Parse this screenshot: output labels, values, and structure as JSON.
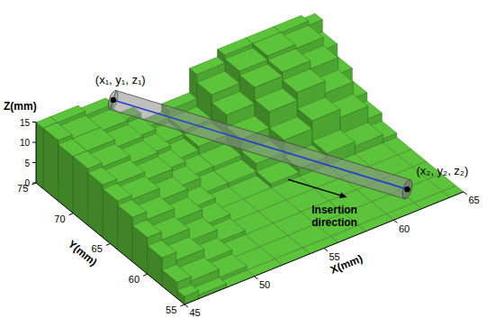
{
  "chart_data": {
    "type": "surface3d",
    "x_label": "X(mm)",
    "y_label": "Y(mm)",
    "z_label": "Z(mm)",
    "xlim": [
      45,
      65
    ],
    "ylim": [
      55,
      75
    ],
    "zlim": [
      0,
      15
    ],
    "xticks": [
      45,
      50,
      55,
      60,
      65
    ],
    "yticks": [
      55,
      60,
      65,
      70,
      75
    ],
    "zticks": [
      0,
      5,
      10,
      15
    ],
    "color": "#5cc43a",
    "surface": {
      "x": [
        45,
        47,
        49,
        51,
        53,
        55,
        57,
        59,
        61,
        63,
        65
      ],
      "y": [
        55,
        57,
        59,
        61,
        63,
        65,
        67,
        69,
        71,
        73,
        75
      ],
      "z": [
        [
          2,
          1,
          0,
          0,
          0,
          0,
          0,
          0,
          0,
          0,
          0
        ],
        [
          4,
          3,
          1,
          0,
          0,
          0,
          0,
          0,
          0,
          0,
          0
        ],
        [
          7,
          5,
          2,
          0,
          0,
          0,
          0,
          0,
          0,
          0,
          0
        ],
        [
          9,
          7,
          4,
          1,
          0,
          0,
          0,
          0,
          0,
          0,
          0
        ],
        [
          11,
          9,
          6,
          2,
          0,
          0,
          0,
          0,
          0,
          0,
          0
        ],
        [
          12,
          11,
          8,
          3,
          0,
          0,
          1,
          2,
          3,
          2,
          1
        ],
        [
          13,
          12,
          10,
          5,
          1,
          1,
          3,
          6,
          8,
          6,
          3
        ],
        [
          14,
          13,
          11,
          6,
          2,
          2,
          6,
          10,
          12,
          9,
          5
        ],
        [
          14,
          14,
          12,
          7,
          3,
          4,
          9,
          13,
          14,
          12,
          8
        ],
        [
          15,
          14,
          13,
          8,
          4,
          5,
          11,
          14,
          15,
          14,
          11
        ],
        [
          15,
          15,
          14,
          9,
          5,
          7,
          13,
          15,
          15,
          15,
          14
        ]
      ]
    },
    "path": {
      "color": "#8c8c8c",
      "start": {
        "label": "(x₁, y₁, z₁)",
        "x": 50,
        "y": 74,
        "z": 15
      },
      "end": {
        "label": "(x₂, y₂, z₂)",
        "x": 61.5,
        "y": 56,
        "z": 4
      }
    },
    "annotation": {
      "lines": [
        "Insertion",
        "direction"
      ]
    }
  }
}
